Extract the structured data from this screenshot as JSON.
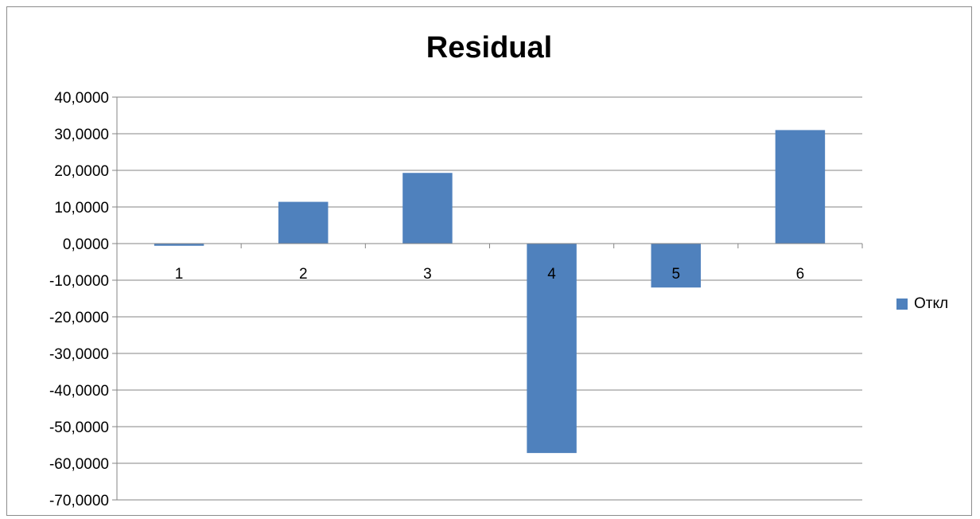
{
  "chart_data": {
    "type": "bar",
    "title": "Residual",
    "xlabel": "",
    "ylabel": "",
    "categories": [
      "1",
      "2",
      "3",
      "4",
      "5",
      "6"
    ],
    "series": [
      {
        "name": "Откл",
        "values": [
          -0.6,
          11.4,
          19.3,
          -57.2,
          -12.0,
          31.0
        ]
      }
    ],
    "ylim": [
      -70,
      40
    ],
    "yticks": [
      40,
      30,
      20,
      10,
      0,
      -10,
      -20,
      -30,
      -40,
      -50,
      -60,
      -70
    ],
    "ytick_labels": [
      "40,0000",
      "30,0000",
      "20,0000",
      "10,0000",
      "0,0000",
      "-10,0000",
      "-20,0000",
      "-30,0000",
      "-40,0000",
      "-50,0000",
      "-60,0000",
      "-70,0000"
    ],
    "grid": true,
    "legend_position": "right",
    "colors": {
      "bar": "#4f81bd",
      "grid": "#868686",
      "axis": "#868686",
      "text": "#000000",
      "border": "#8c8c8c"
    }
  }
}
